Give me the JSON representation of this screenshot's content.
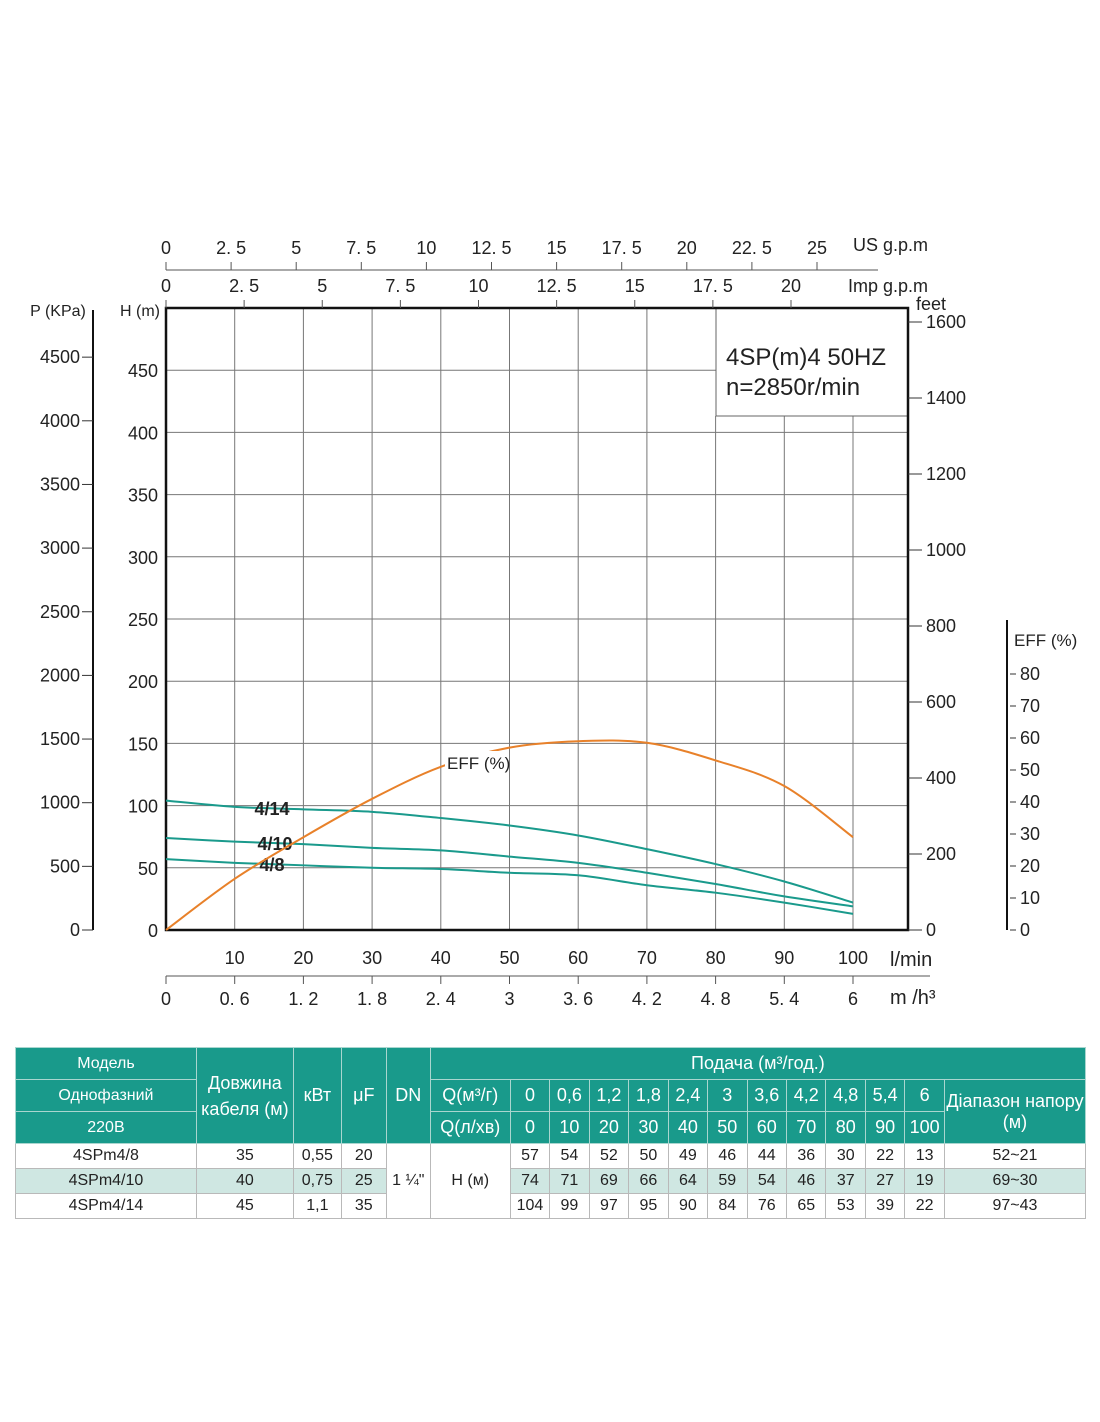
{
  "chart_data": {
    "type": "line",
    "legend_box": {
      "line1": "4SP(m)4  50HZ",
      "line2": "n=2850r/min"
    },
    "x": [
      0,
      10,
      20,
      30,
      40,
      50,
      60,
      70,
      80,
      90,
      100
    ],
    "xlabel": "l/min",
    "xlabel2": "m /h³",
    "ylabel": "H (m)",
    "ylabel_pressure": "P (KPa)",
    "ylabel_feet": "feet",
    "ylabel_eff": "EFF (%)",
    "top_axis_us_label": "US g.p.m",
    "top_axis_imp_label": "Imp g.p.m",
    "xlim": [
      0,
      108
    ],
    "ylim": [
      0,
      500
    ],
    "grid": true,
    "series": [
      {
        "name": "4/14",
        "values": [
          104,
          99,
          97,
          95,
          90,
          84,
          76,
          65,
          53,
          39,
          22
        ],
        "color": "#1a9a8c"
      },
      {
        "name": "4/10",
        "values": [
          74,
          71,
          69,
          66,
          64,
          59,
          54,
          46,
          37,
          27,
          19
        ],
        "color": "#1a9a8c"
      },
      {
        "name": "4/8",
        "values": [
          57,
          54,
          52,
          50,
          49,
          46,
          44,
          36,
          30,
          22,
          13
        ],
        "color": "#1a9a8c"
      },
      {
        "name": "EFF (%)",
        "axis": "eff",
        "values": [
          0,
          16,
          29,
          41,
          51,
          57,
          59,
          58.5,
          53,
          45,
          29
        ],
        "color": "#e8812a"
      }
    ],
    "ticks": {
      "lmin": [
        "10",
        "20",
        "30",
        "40",
        "50",
        "60",
        "70",
        "80",
        "90",
        "100"
      ],
      "m3h": [
        "0",
        "0. 6",
        "1. 2",
        "1. 8",
        "2. 4",
        "3",
        "3. 6",
        "4. 2",
        "4. 8",
        "5. 4",
        "6"
      ],
      "us_gpm": [
        "0",
        "2. 5",
        "5",
        "7. 5",
        "10",
        "12. 5",
        "15",
        "17. 5",
        "20",
        "22. 5",
        "25"
      ],
      "imp_gpm": [
        "0",
        "2. 5",
        "5",
        "7. 5",
        "10",
        "12. 5",
        "15",
        "17. 5",
        "20"
      ],
      "head": [
        "0",
        "50",
        "100",
        "150",
        "200",
        "250",
        "300",
        "350",
        "400",
        "450"
      ],
      "pressure": [
        "0",
        "500",
        "1000",
        "1500",
        "2000",
        "2500",
        "3000",
        "3500",
        "4000",
        "4500"
      ],
      "feet": [
        "0",
        "200",
        "400",
        "600",
        "800",
        "1000",
        "1200",
        "1400",
        "1600"
      ],
      "eff": [
        "0",
        "10",
        "20",
        "30",
        "40",
        "50",
        "60",
        "70",
        "80"
      ]
    }
  },
  "table": {
    "model_header": "Модель",
    "phase_header": "Однофазний",
    "voltage_header": "220В",
    "cable_header": "Довжина кабеля (м)",
    "kw_header": "кВт",
    "uf_header": "μF",
    "dn_header": "DN",
    "flow_header": "Подача (м³/год.)",
    "q_m3h_label": "Q(м³/г)",
    "q_lmin_label": "Q(л/хв)",
    "range_header": "Діапазон напору (м)",
    "q_m3h": [
      "0",
      "0,6",
      "1,2",
      "1,8",
      "2,4",
      "3",
      "3,6",
      "4,2",
      "4,8",
      "5,4",
      "6"
    ],
    "q_lmin": [
      "0",
      "10",
      "20",
      "30",
      "40",
      "50",
      "60",
      "70",
      "80",
      "90",
      "100"
    ],
    "dn_value": "1 ¼\"",
    "h_label": "H (м)",
    "rows": [
      {
        "model": "4SPm4/8",
        "cable": "35",
        "kw": "0,55",
        "uf": "20",
        "heads": [
          "57",
          "54",
          "52",
          "50",
          "49",
          "46",
          "44",
          "36",
          "30",
          "22",
          "13"
        ],
        "range": "52~21"
      },
      {
        "model": "4SPm4/10",
        "cable": "40",
        "kw": "0,75",
        "uf": "25",
        "heads": [
          "74",
          "71",
          "69",
          "66",
          "64",
          "59",
          "54",
          "46",
          "37",
          "27",
          "19"
        ],
        "range": "69~30"
      },
      {
        "model": "4SPm4/14",
        "cable": "45",
        "kw": "1,1",
        "uf": "35",
        "heads": [
          "104",
          "99",
          "97",
          "95",
          "90",
          "84",
          "76",
          "65",
          "53",
          "39",
          "22"
        ],
        "range": "97~43"
      }
    ]
  }
}
